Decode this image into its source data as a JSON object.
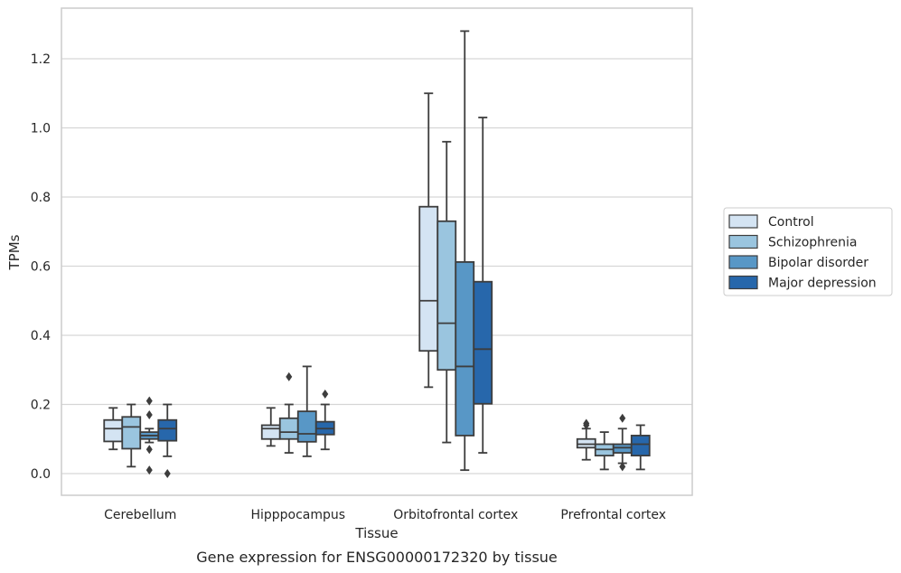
{
  "chart_data": {
    "type": "box",
    "xlabel": "Tissue",
    "ylabel": "TPMs",
    "caption": "Gene expression for ENSG00000172320 by tissue",
    "ylim": [
      -0.06,
      1.35
    ],
    "yticks": [
      "0.0",
      "0.2",
      "0.4",
      "0.6",
      "0.8",
      "1.0",
      "1.2"
    ],
    "grid": "horizontal",
    "legend_position": "right",
    "categories": [
      "Cerebellum",
      "Hipppocampus",
      "Orbitofrontal cortex",
      "Prefrontal cortex"
    ],
    "series": [
      {
        "name": "Control",
        "color": "#d4e4f3",
        "boxes": [
          {
            "whislo": 0.07,
            "q1": 0.093,
            "med": 0.13,
            "q3": 0.155,
            "whishi": 0.19,
            "fliers": []
          },
          {
            "whislo": 0.08,
            "q1": 0.1,
            "med": 0.13,
            "q3": 0.14,
            "whishi": 0.19,
            "fliers": []
          },
          {
            "whislo": 0.25,
            "q1": 0.355,
            "med": 0.5,
            "q3": 0.772,
            "whishi": 1.1,
            "fliers": []
          },
          {
            "whislo": 0.04,
            "q1": 0.075,
            "med": 0.085,
            "q3": 0.1,
            "whishi": 0.13,
            "fliers": [
              0.14,
              0.145
            ]
          }
        ]
      },
      {
        "name": "Schizophrenia",
        "color": "#9ac5df",
        "boxes": [
          {
            "whislo": 0.02,
            "q1": 0.072,
            "med": 0.135,
            "q3": 0.164,
            "whishi": 0.2,
            "fliers": []
          },
          {
            "whislo": 0.06,
            "q1": 0.1,
            "med": 0.12,
            "q3": 0.16,
            "whishi": 0.2,
            "fliers": [
              0.28
            ]
          },
          {
            "whislo": 0.09,
            "q1": 0.3,
            "med": 0.435,
            "q3": 0.73,
            "whishi": 0.96,
            "fliers": []
          },
          {
            "whislo": 0.012,
            "q1": 0.052,
            "med": 0.07,
            "q3": 0.085,
            "whishi": 0.12,
            "fliers": []
          }
        ]
      },
      {
        "name": "Bipolar disorder",
        "color": "#5897c6",
        "boxes": [
          {
            "whislo": 0.09,
            "q1": 0.1,
            "med": 0.11,
            "q3": 0.12,
            "whishi": 0.13,
            "fliers": [
              0.21,
              0.17,
              0.07,
              0.01
            ]
          },
          {
            "whislo": 0.05,
            "q1": 0.092,
            "med": 0.115,
            "q3": 0.18,
            "whishi": 0.31,
            "fliers": []
          },
          {
            "whislo": 0.01,
            "q1": 0.11,
            "med": 0.31,
            "q3": 0.612,
            "whishi": 1.28,
            "fliers": []
          },
          {
            "whislo": 0.03,
            "q1": 0.06,
            "med": 0.075,
            "q3": 0.085,
            "whishi": 0.13,
            "fliers": [
              0.16,
              0.02
            ]
          }
        ]
      },
      {
        "name": "Major depression",
        "color": "#2767ab",
        "boxes": [
          {
            "whislo": 0.05,
            "q1": 0.095,
            "med": 0.13,
            "q3": 0.155,
            "whishi": 0.2,
            "fliers": [
              0.0
            ]
          },
          {
            "whislo": 0.07,
            "q1": 0.113,
            "med": 0.13,
            "q3": 0.15,
            "whishi": 0.2,
            "fliers": [
              0.23
            ]
          },
          {
            "whislo": 0.06,
            "q1": 0.202,
            "med": 0.36,
            "q3": 0.555,
            "whishi": 1.03,
            "fliers": []
          },
          {
            "whislo": 0.012,
            "q1": 0.052,
            "med": 0.085,
            "q3": 0.11,
            "whishi": 0.14,
            "fliers": []
          }
        ]
      }
    ]
  }
}
